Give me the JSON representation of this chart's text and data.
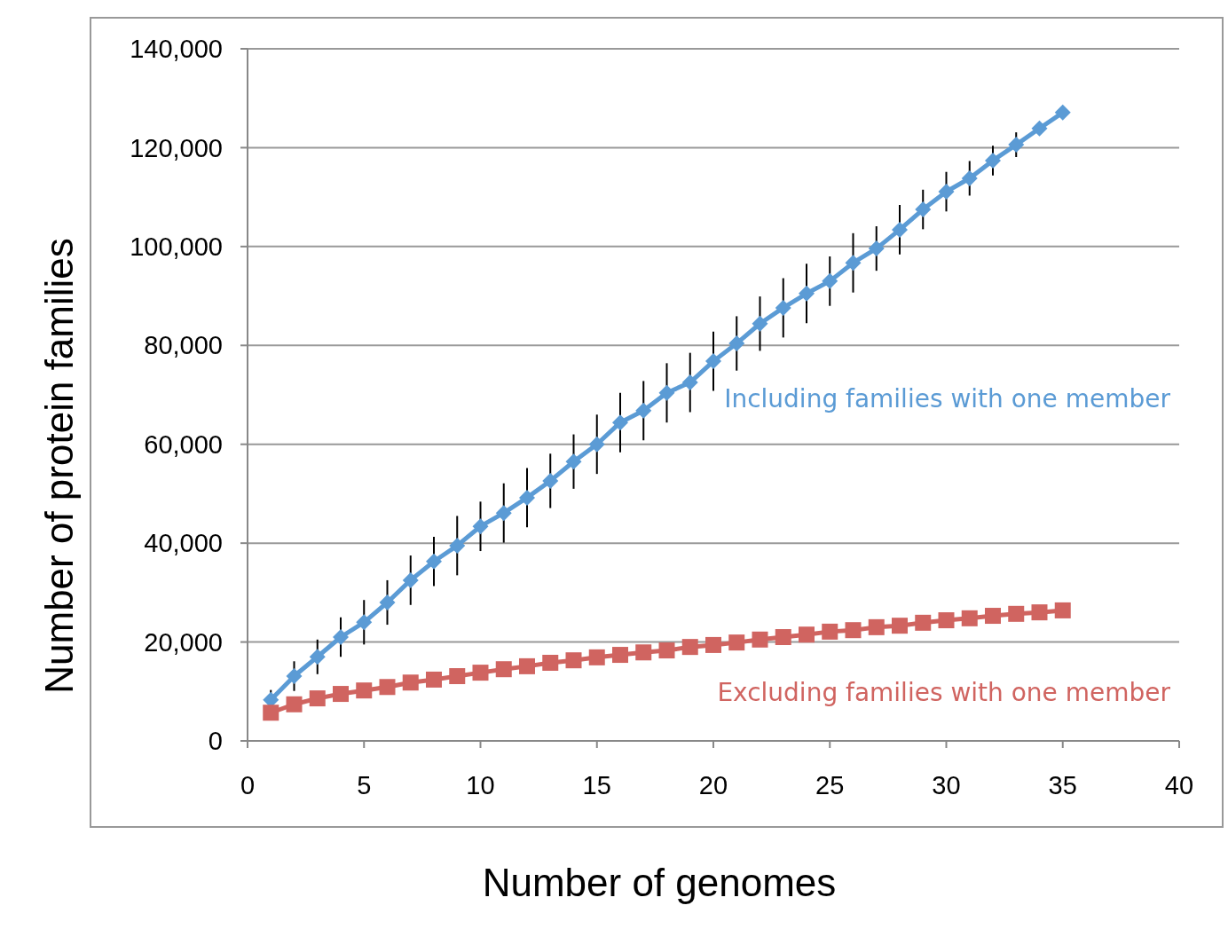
{
  "chart_data": {
    "type": "line",
    "xlabel": "Number of genomes",
    "ylabel": "Number of protein families",
    "x": [
      1,
      2,
      3,
      4,
      5,
      6,
      7,
      8,
      9,
      10,
      11,
      12,
      13,
      14,
      15,
      16,
      17,
      18,
      19,
      20,
      21,
      22,
      23,
      24,
      25,
      26,
      27,
      28,
      29,
      30,
      31,
      32,
      33,
      34,
      35
    ],
    "xlim": [
      0,
      40
    ],
    "xticks": [
      0,
      5,
      10,
      15,
      20,
      25,
      30,
      35,
      40
    ],
    "ylim": [
      0,
      140000
    ],
    "yticks": [
      {
        "value": 0,
        "label": "0"
      },
      {
        "value": 20000,
        "label": "20,000"
      },
      {
        "value": 40000,
        "label": "40,000"
      },
      {
        "value": 60000,
        "label": "60,000"
      },
      {
        "value": 80000,
        "label": "80,000"
      },
      {
        "value": 100000,
        "label": "100,000"
      },
      {
        "value": 120000,
        "label": "120,000"
      },
      {
        "value": 140000,
        "label": "140,000"
      }
    ],
    "grid": "y",
    "series": [
      {
        "name": "Including families with one member",
        "color": "#5b9bd5",
        "marker": "diamond",
        "values": [
          8300,
          13100,
          17000,
          21000,
          24000,
          28000,
          32500,
          36300,
          39500,
          43400,
          46100,
          49200,
          52600,
          56500,
          60000,
          64400,
          66800,
          70400,
          72500,
          76800,
          80400,
          84400,
          87600,
          90500,
          93000,
          96700,
          99600,
          103400,
          107500,
          111100,
          113800,
          117400,
          120600,
          123900,
          127100
        ],
        "errors": [
          2000,
          3000,
          3500,
          4000,
          4500,
          4500,
          5000,
          5000,
          6000,
          5000,
          6000,
          6000,
          5500,
          5500,
          6000,
          6000,
          6000,
          6000,
          6000,
          6000,
          5500,
          5500,
          6000,
          6000,
          5000,
          6000,
          4500,
          5000,
          4000,
          4000,
          3500,
          3000,
          2500,
          null,
          null
        ]
      },
      {
        "name": "Excluding families with one member",
        "color": "#d06460",
        "marker": "square",
        "values": [
          5700,
          7400,
          8600,
          9500,
          10200,
          10900,
          11800,
          12400,
          13100,
          13800,
          14500,
          15100,
          15800,
          16300,
          16900,
          17400,
          17900,
          18300,
          19000,
          19400,
          19900,
          20500,
          21000,
          21500,
          22100,
          22400,
          23000,
          23300,
          23900,
          24400,
          24800,
          25300,
          25700,
          26000,
          26400
        ]
      }
    ]
  }
}
